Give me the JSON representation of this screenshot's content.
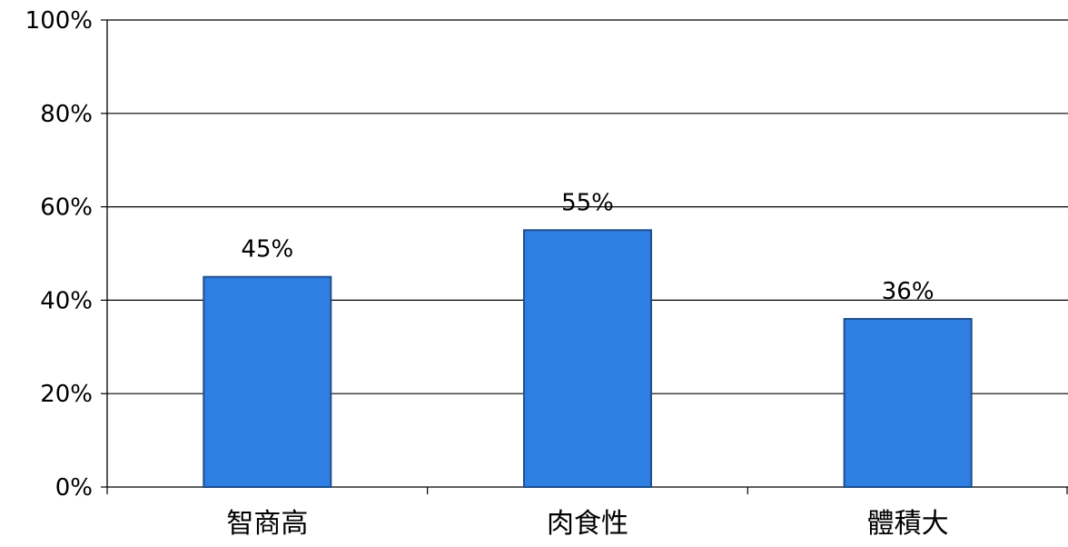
{
  "chart_data": {
    "type": "bar",
    "title": "",
    "xlabel": "",
    "ylabel": "",
    "categories": [
      "智商高",
      "肉食性",
      "體積大"
    ],
    "series": [
      {
        "values": [
          45,
          55,
          36
        ],
        "data_labels": [
          "45%",
          "55%",
          "36%"
        ]
      }
    ],
    "ylim": [
      0,
      100
    ],
    "y_ticks": [
      0,
      20,
      40,
      60,
      80,
      100
    ],
    "y_tick_labels": [
      "0%",
      "20%",
      "40%",
      "60%",
      "80%",
      "100%"
    ],
    "grid": true,
    "legend": "none",
    "colors": {
      "bar_fill": "#2f7fe3",
      "bar_stroke": "#1f4f8f",
      "grid": "#000000",
      "axis": "#000000"
    }
  }
}
